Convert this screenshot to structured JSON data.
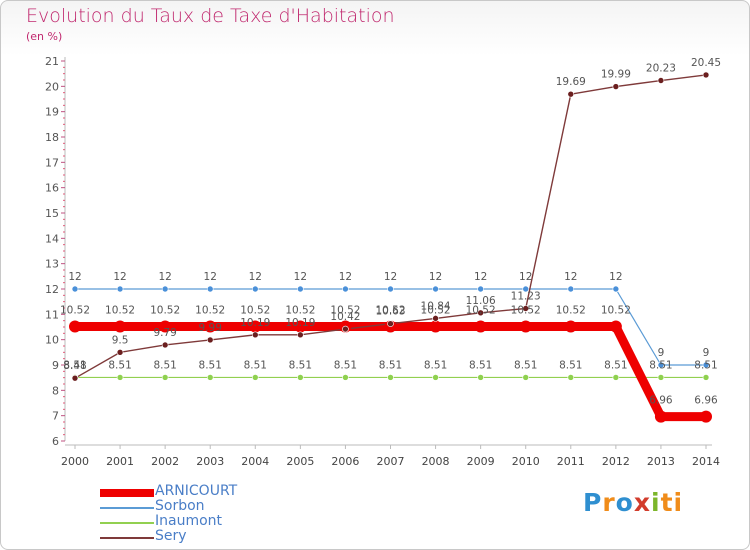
{
  "title": "Evolution du Taux de Taxe d'Habitation",
  "subtitle": "(en %)",
  "logo_text": "Proxiti",
  "chart_data": {
    "type": "line",
    "title": "Evolution du Taux de Taxe d'Habitation",
    "ylabel": "(en %)",
    "x": [
      2000,
      2001,
      2002,
      2003,
      2004,
      2005,
      2006,
      2007,
      2008,
      2009,
      2010,
      2011,
      2012,
      2013,
      2014
    ],
    "ylim": [
      6,
      21
    ],
    "yticks": [
      6,
      7,
      8,
      9,
      10,
      11,
      12,
      13,
      14,
      15,
      16,
      17,
      18,
      19,
      20,
      21
    ],
    "grid": false,
    "legend_position": "bottom-left",
    "series": [
      {
        "name": "ARNICOURT",
        "color": "#ee0000",
        "values": [
          10.52,
          10.52,
          10.52,
          10.52,
          10.52,
          10.52,
          10.52,
          10.52,
          10.52,
          10.52,
          10.52,
          10.52,
          10.52,
          6.96,
          6.96
        ],
        "labels": [
          "10.52",
          "10.52",
          "10.52",
          "10.52",
          "10.52",
          "10.52",
          "10.52",
          "10.52",
          "10.52",
          "10.52",
          "10.52",
          "10.52",
          "10.52",
          "6.96",
          "6.96"
        ]
      },
      {
        "name": "Sorbon",
        "color": "#5b9bd5",
        "values": [
          12,
          12,
          12,
          12,
          12,
          12,
          12,
          12,
          12,
          12,
          12,
          12,
          12,
          9,
          9
        ],
        "labels": [
          "12",
          "12",
          "12",
          "12",
          "12",
          "12",
          "12",
          "12",
          "12",
          "12",
          "12",
          "12",
          "12",
          "9",
          "9"
        ]
      },
      {
        "name": "Inaumont",
        "color": "#92d050",
        "values": [
          8.51,
          8.51,
          8.51,
          8.51,
          8.51,
          8.51,
          8.51,
          8.51,
          8.51,
          8.51,
          8.51,
          8.51,
          8.51,
          8.51,
          8.51
        ],
        "labels": [
          "8.51",
          "8.51",
          "8.51",
          "8.51",
          "8.51",
          "8.51",
          "8.51",
          "8.51",
          "8.51",
          "8.51",
          "8.51",
          "8.51",
          "8.51",
          "8.51",
          "8.51"
        ]
      },
      {
        "name": "Sery",
        "color": "#7f3a3a",
        "values": [
          8.48,
          9.5,
          9.79,
          9.99,
          10.19,
          10.19,
          10.42,
          10.63,
          10.84,
          11.06,
          11.23,
          19.69,
          19.99,
          20.23,
          20.45
        ],
        "labels": [
          "8.48",
          "9.5",
          "9.79",
          "9.99",
          "10.19",
          "10.19",
          "10.42",
          "10.63",
          "10.84",
          "11.06",
          "11.23",
          "19.69",
          "19.99",
          "20.23",
          "20.45"
        ]
      }
    ]
  }
}
